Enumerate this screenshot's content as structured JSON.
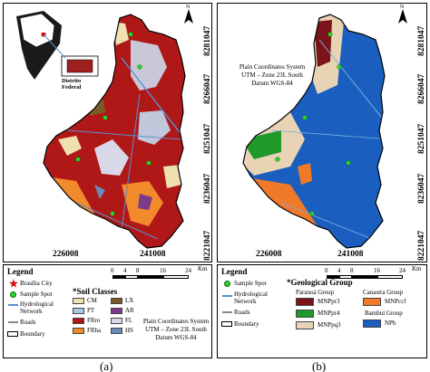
{
  "panel_a": {
    "caption": "(a)",
    "coords_x": [
      "226008",
      "241008"
    ],
    "coords_y": [
      "8281047",
      "8266047",
      "8251047",
      "8236047",
      "8221047"
    ],
    "inset": {
      "country": "Brazil",
      "district": "Distrito\nFederal"
    },
    "legend": {
      "title": "Legend",
      "items": [
        {
          "label": "Brasília City"
        },
        {
          "label": "Sample Spot"
        },
        {
          "label": "Hydrological\nNetwork"
        },
        {
          "label": "Roads"
        },
        {
          "label": "Boundary"
        }
      ],
      "soil_title": "*Soil Classes",
      "soil_classes": [
        {
          "code": "CM",
          "color": "#f0e0b0"
        },
        {
          "code": "PT",
          "color": "#a6c8e8"
        },
        {
          "code": "FRro",
          "color": "#b01818"
        },
        {
          "code": "FRha",
          "color": "#f08a2a"
        },
        {
          "code": "LX",
          "color": "#7a5a2a"
        },
        {
          "code": "AR",
          "color": "#7b3a8a"
        },
        {
          "code": "FL",
          "color": "#d8d8e8"
        },
        {
          "code": "HS",
          "color": "#6a8ab8"
        }
      ],
      "projection": "Plain Coordinates System\nUTM – Zone 23L South\nDatum WGS-84"
    },
    "scale": {
      "unit": "Km",
      "ticks": [
        "0",
        "4",
        "8",
        "16",
        "24"
      ]
    }
  },
  "panel_b": {
    "caption": "(b)",
    "coords_x": [
      "226008",
      "241008"
    ],
    "coords_y": [
      "8281047",
      "8266047",
      "8251047",
      "8236047",
      "8221047"
    ],
    "projection": "Plain Coordinates System\nUTM – Zone 23L South\nDatum WGS-84",
    "legend": {
      "title": "Legend",
      "items": [
        {
          "label": "Sample Spot"
        },
        {
          "label": "Hydrological\nNetwork"
        },
        {
          "label": "Roads"
        },
        {
          "label": "Boundary"
        }
      ],
      "geo_title": "*Geological Group",
      "paranoa_title": "Paranoá Group",
      "paranoa": [
        {
          "code": "MNPpr3",
          "color": "#7a1418"
        },
        {
          "code": "MNPpr4",
          "color": "#1f9a2a"
        },
        {
          "code": "MNPpq3",
          "color": "#e8d4b4"
        }
      ],
      "canastra_title": "Canastra Group",
      "canastra": [
        {
          "code": "MNPccf",
          "color": "#f07a2a"
        }
      ],
      "bambui_title": "Bambuí Group",
      "bambui": [
        {
          "code": "NPb",
          "color": "#1a5fbf"
        }
      ]
    },
    "scale": {
      "unit": "Km",
      "ticks": [
        "0",
        "4",
        "8",
        "16",
        "24"
      ]
    }
  },
  "north_label": "N"
}
